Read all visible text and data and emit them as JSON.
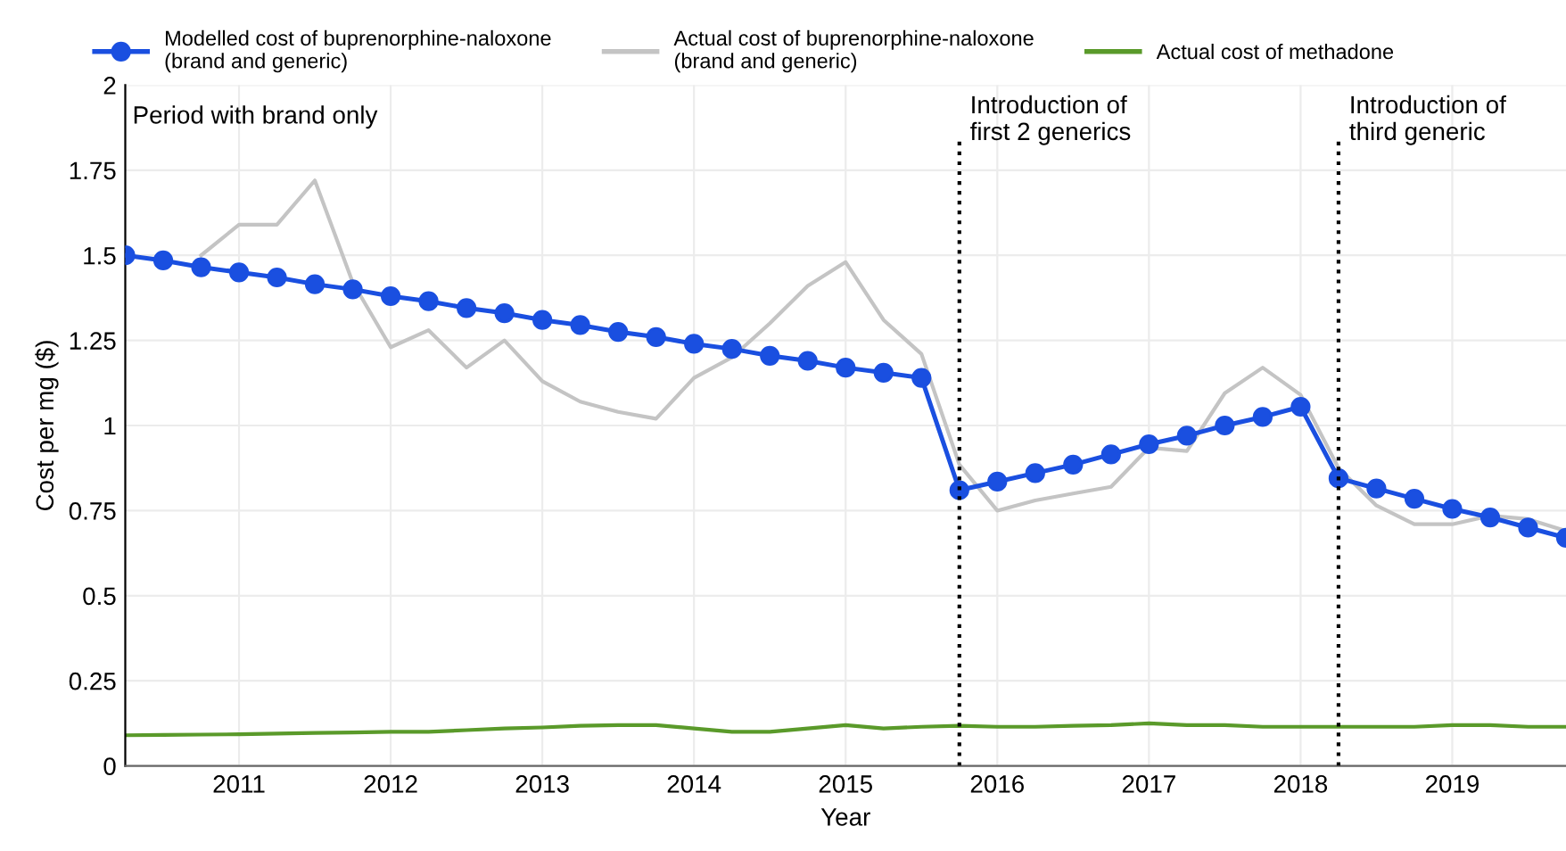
{
  "chart_data": {
    "type": "line",
    "xlabel": "Year",
    "ylabel": "Cost per mg ($)",
    "x": [
      2010.25,
      2010.5,
      2010.75,
      2011,
      2011.25,
      2011.5,
      2011.75,
      2012,
      2012.25,
      2012.5,
      2012.75,
      2013,
      2013.25,
      2013.5,
      2013.75,
      2014,
      2014.25,
      2014.5,
      2014.75,
      2015,
      2015.25,
      2015.5,
      2015.75,
      2016,
      2016.25,
      2016.5,
      2016.75,
      2017,
      2017.25,
      2017.5,
      2017.75,
      2018,
      2018.25,
      2018.5,
      2018.75,
      2019,
      2019.25,
      2019.5,
      2019.75
    ],
    "series": [
      {
        "name": "Modelled cost of buprenorphine-naloxone\n(brand and generic)",
        "color": "#1a4fe0",
        "marker": "circle",
        "values": [
          1.5,
          1.485,
          1.465,
          1.45,
          1.435,
          1.415,
          1.4,
          1.38,
          1.365,
          1.345,
          1.33,
          1.31,
          1.295,
          1.275,
          1.26,
          1.24,
          1.225,
          1.205,
          1.19,
          1.17,
          1.155,
          1.14,
          0.81,
          0.835,
          0.86,
          0.885,
          0.915,
          0.945,
          0.97,
          1.0,
          1.025,
          1.055,
          0.845,
          0.815,
          0.785,
          0.755,
          0.73,
          0.7,
          0.67
        ]
      },
      {
        "name": "Actual cost of buprenorphine-naloxone\n(brand and generic)",
        "color": "#c4c4c4",
        "marker": "none",
        "values": [
          null,
          null,
          1.5,
          1.59,
          1.59,
          1.72,
          1.42,
          1.23,
          1.28,
          1.17,
          1.25,
          1.13,
          1.07,
          1.04,
          1.02,
          1.14,
          1.2,
          1.3,
          1.41,
          1.48,
          1.31,
          1.21,
          0.885,
          0.75,
          0.78,
          0.8,
          0.82,
          0.935,
          0.925,
          1.095,
          1.17,
          1.09,
          0.875,
          0.765,
          0.71,
          0.71,
          0.735,
          0.725,
          0.69
        ]
      },
      {
        "name": "Actual cost of methadone",
        "color": "#5a9a2a",
        "marker": "none",
        "values": [
          0.09,
          0.091,
          0.092,
          0.093,
          0.095,
          0.097,
          0.098,
          0.1,
          0.1,
          0.105,
          0.11,
          0.113,
          0.118,
          0.12,
          0.12,
          0.11,
          0.1,
          0.1,
          0.11,
          0.12,
          0.11,
          0.115,
          0.118,
          0.115,
          0.115,
          0.118,
          0.12,
          0.125,
          0.12,
          0.12,
          0.115,
          0.115,
          0.115,
          0.115,
          0.115,
          0.12,
          0.12,
          0.115,
          0.115
        ]
      }
    ],
    "xlim": [
      2010.25,
      2019.75
    ],
    "xticks": [
      2011,
      2012,
      2013,
      2014,
      2015,
      2016,
      2017,
      2018,
      2019
    ],
    "ylim": [
      0,
      2
    ],
    "yticks": [
      0,
      0.25,
      0.5,
      0.75,
      1,
      1.25,
      1.5,
      1.75,
      2
    ],
    "ref_lines": [
      {
        "axis": "x",
        "value": 2015.75,
        "label": "Introduction of\nfirst 2 generics",
        "color": "#000000",
        "line_style": "dotted"
      },
      {
        "axis": "x",
        "value": 2018.25,
        "label": "Introduction of\nthird generic",
        "color": "#000000",
        "line_style": "dotted"
      }
    ],
    "annotations": [
      "Period with brand only"
    ],
    "grid": true,
    "legend": "top",
    "line_style": "solid"
  }
}
